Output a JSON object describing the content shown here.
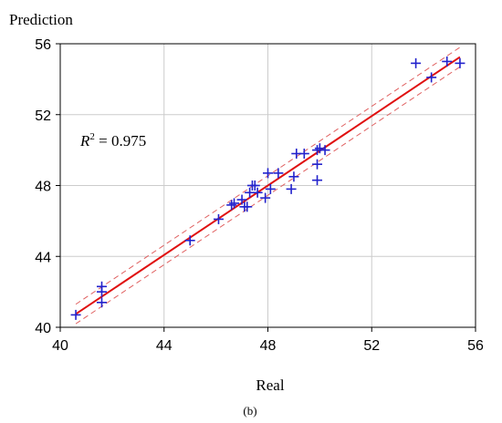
{
  "chart_data": {
    "type": "scatter",
    "title": "",
    "ylabel": "Prediction",
    "xlabel": "Real",
    "caption": "(b)",
    "annotation": {
      "r2_symbol": "R",
      "r2_sup": "2",
      "r2_text": " = 0.975"
    },
    "xlim": [
      40,
      56
    ],
    "ylim": [
      40,
      56
    ],
    "x_ticks": [
      40,
      44,
      48,
      52,
      56
    ],
    "y_ticks": [
      40,
      44,
      48,
      52,
      56
    ],
    "x_tick_labels": [
      "40",
      "44",
      "48",
      "52",
      "56"
    ],
    "y_tick_labels": [
      "40",
      "44",
      "48",
      "52",
      "56"
    ],
    "grid": true,
    "points": {
      "x": [
        40.6,
        41.6,
        41.6,
        41.6,
        45.0,
        46.1,
        46.6,
        46.7,
        47.0,
        47.1,
        47.2,
        47.3,
        47.4,
        47.5,
        47.6,
        47.9,
        48.0,
        48.1,
        48.4,
        48.9,
        49.0,
        49.1,
        49.4,
        49.9,
        49.9,
        49.9,
        50.0,
        50.2,
        53.7,
        54.3,
        54.9,
        55.4
      ],
      "y": [
        40.7,
        42.3,
        42.0,
        41.4,
        44.9,
        46.1,
        46.9,
        47.0,
        47.2,
        46.8,
        46.8,
        47.6,
        48.0,
        48.0,
        47.6,
        47.3,
        48.7,
        47.8,
        48.7,
        47.8,
        48.5,
        49.8,
        49.8,
        50.0,
        49.2,
        48.3,
        50.1,
        50.0,
        54.9,
        54.1,
        55.0,
        54.9
      ]
    },
    "fit_line": {
      "x": [
        40.6,
        55.4
      ],
      "y": [
        40.75,
        55.25
      ]
    },
    "confidence_band_offset": 0.55,
    "colors": {
      "points": "#2222cc",
      "fit": "#e01010",
      "band": "#e06060",
      "grid": "#cccccc",
      "axis": "#000000"
    }
  }
}
